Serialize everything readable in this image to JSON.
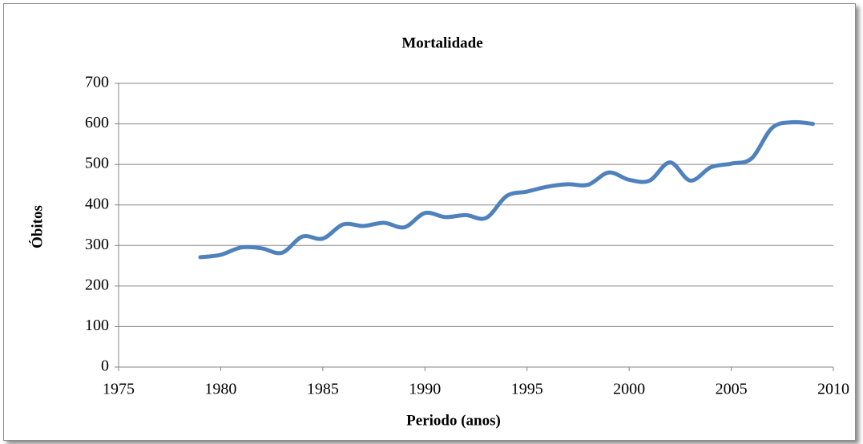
{
  "chart_data": {
    "type": "line",
    "title": "Mortalidade",
    "x_label": "Periodo (anos)",
    "y_label": "Óbitos",
    "x": [
      1979,
      1980,
      1981,
      1982,
      1983,
      1984,
      1985,
      1986,
      1987,
      1988,
      1989,
      1990,
      1991,
      1992,
      1993,
      1994,
      1995,
      1996,
      1997,
      1998,
      1999,
      2000,
      2001,
      2002,
      2003,
      2004,
      2005,
      2006,
      2007,
      2008,
      2009
    ],
    "series": [
      {
        "name": "Óbitos",
        "color": "#4f81bd",
        "values": [
          271,
          277,
          295,
          293,
          282,
          322,
          317,
          352,
          348,
          356,
          345,
          380,
          370,
          375,
          368,
          422,
          433,
          445,
          451,
          450,
          480,
          462,
          460,
          505,
          460,
          493,
          502,
          515,
          590,
          604,
          600
        ]
      }
    ],
    "xlim": [
      1975,
      2010
    ],
    "xticks": [
      1975,
      1980,
      1985,
      1990,
      1995,
      2000,
      2005,
      2010
    ],
    "ylim": [
      0,
      700
    ],
    "yticks": [
      0,
      100,
      200,
      300,
      400,
      500,
      600,
      700
    ],
    "grid": true,
    "smooth": true
  }
}
